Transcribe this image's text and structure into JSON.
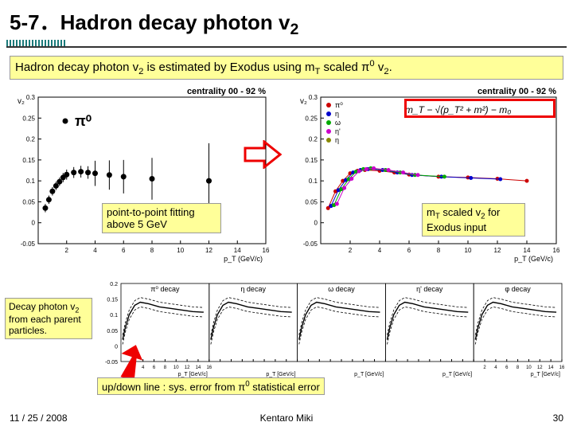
{
  "title": "5-7．Hadron decay photon v",
  "title_sub": "2",
  "statement_pre": "Hadron decay photon v",
  "statement_mid": " is estimated by Exodus using m",
  "statement_post": " scaled π",
  "statement_end": " v",
  "statement_sub1": "2",
  "statement_subT": "T",
  "statement_sup0": "0",
  "statement_sub2": "2",
  "statement_dot": ".",
  "left_chart": {
    "title": "centrality 00 - 92 %",
    "ylabel": "v₂",
    "xlabel": "p_T (GeV/c)",
    "legend": "π⁰",
    "xlim": [
      0,
      16
    ],
    "ylim": [
      -0.05,
      0.3
    ],
    "yticks": [
      -0.05,
      0,
      0.05,
      0.1,
      0.15,
      0.2,
      0.25,
      0.3
    ],
    "xticks": [
      2,
      4,
      6,
      8,
      10,
      12,
      14,
      16
    ],
    "points": [
      {
        "x": 0.5,
        "y": 0.035,
        "ey": 0.01
      },
      {
        "x": 0.75,
        "y": 0.055,
        "ey": 0.01
      },
      {
        "x": 1.0,
        "y": 0.075,
        "ey": 0.01
      },
      {
        "x": 1.25,
        "y": 0.088,
        "ey": 0.01
      },
      {
        "x": 1.5,
        "y": 0.098,
        "ey": 0.01
      },
      {
        "x": 1.75,
        "y": 0.108,
        "ey": 0.011
      },
      {
        "x": 2.0,
        "y": 0.115,
        "ey": 0.012
      },
      {
        "x": 2.5,
        "y": 0.12,
        "ey": 0.013
      },
      {
        "x": 3.0,
        "y": 0.122,
        "ey": 0.014
      },
      {
        "x": 3.5,
        "y": 0.12,
        "ey": 0.015
      },
      {
        "x": 4.0,
        "y": 0.118,
        "ey": 0.03
      },
      {
        "x": 5.0,
        "y": 0.114,
        "ey": 0.035
      },
      {
        "x": 6.0,
        "y": 0.11,
        "ey": 0.04
      },
      {
        "x": 8.0,
        "y": 0.105,
        "ey": 0.05
      },
      {
        "x": 12.0,
        "y": 0.1,
        "ey": 0.09
      }
    ],
    "marker_color": "#000000",
    "marker_size": 3.5
  },
  "right_chart": {
    "title": "centrality 00 - 92 %",
    "ylabel": "v₂",
    "xlabel": "p_T (GeV/c)",
    "xlim": [
      0,
      16
    ],
    "ylim": [
      -0.05,
      0.3
    ],
    "yticks": [
      -0.05,
      0,
      0.05,
      0.1,
      0.15,
      0.2,
      0.25,
      0.3
    ],
    "xticks": [
      2,
      4,
      6,
      8,
      10,
      12,
      14,
      16
    ],
    "legend": [
      {
        "label": "π⁰",
        "marker": "circle",
        "color": "#cc0000"
      },
      {
        "label": "η",
        "marker": "triangle-down",
        "color": "#0000cc"
      },
      {
        "label": "ω",
        "marker": "triangle-up",
        "color": "#00aa00"
      },
      {
        "label": "η'",
        "marker": "triangle-down",
        "color": "#cc00cc"
      },
      {
        "label": "η",
        "marker": "cross",
        "color": "#888800"
      }
    ],
    "formula": "m_T − √(p_T² + m²) − m₀",
    "series": [
      {
        "color": "#cc0000",
        "points": [
          [
            0.5,
            0.035
          ],
          [
            1,
            0.075
          ],
          [
            1.5,
            0.1
          ],
          [
            2,
            0.118
          ],
          [
            2.5,
            0.124
          ],
          [
            3,
            0.126
          ],
          [
            4,
            0.124
          ],
          [
            5,
            0.12
          ],
          [
            6,
            0.115
          ],
          [
            8,
            0.11
          ],
          [
            10,
            0.108
          ],
          [
            12,
            0.105
          ],
          [
            14,
            0.1
          ]
        ]
      },
      {
        "color": "#0000cc",
        "points": [
          [
            0.7,
            0.04
          ],
          [
            1.2,
            0.078
          ],
          [
            1.7,
            0.102
          ],
          [
            2.2,
            0.12
          ],
          [
            2.7,
            0.126
          ],
          [
            3.2,
            0.128
          ],
          [
            4.2,
            0.126
          ],
          [
            5.2,
            0.12
          ],
          [
            6.2,
            0.114
          ],
          [
            8.2,
            0.11
          ],
          [
            10.2,
            0.107
          ],
          [
            12.2,
            0.104
          ]
        ]
      },
      {
        "color": "#00aa00",
        "points": [
          [
            0.9,
            0.042
          ],
          [
            1.4,
            0.08
          ],
          [
            1.9,
            0.104
          ],
          [
            2.4,
            0.122
          ],
          [
            2.9,
            0.128
          ],
          [
            3.4,
            0.13
          ],
          [
            4.4,
            0.126
          ],
          [
            5.4,
            0.12
          ],
          [
            6.4,
            0.114
          ],
          [
            8.4,
            0.11
          ]
        ]
      },
      {
        "color": "#cc00cc",
        "points": [
          [
            1.1,
            0.045
          ],
          [
            1.6,
            0.083
          ],
          [
            2.1,
            0.105
          ],
          [
            2.6,
            0.123
          ],
          [
            3.1,
            0.128
          ],
          [
            3.6,
            0.13
          ],
          [
            4.6,
            0.126
          ],
          [
            5.6,
            0.12
          ],
          [
            6.6,
            0.114
          ]
        ]
      }
    ]
  },
  "caption_left": "point-to-point fitting above 5 GeV",
  "caption_right_pre": "m",
  "caption_right_mid": " scaled v",
  "caption_right_post": " for Exodus input",
  "decay_label_pre": "Decay photon v",
  "decay_label_post": " from each parent particles.",
  "bottom_panels": {
    "titles": [
      "π⁰ decay",
      "η decay",
      "ω decay",
      "η' decay",
      "φ decay"
    ],
    "ylim": [
      -0.05,
      0.2
    ],
    "yticks": [
      -0.05,
      0,
      0.05,
      0.1,
      0.15,
      0.2
    ],
    "xlim": [
      0,
      16
    ],
    "xticks": [
      2,
      4,
      6,
      8,
      10,
      12,
      14,
      16
    ],
    "xlabel": "p_T [GeV/c]",
    "curve": [
      [
        0.3,
        0.02
      ],
      [
        0.8,
        0.06
      ],
      [
        1.5,
        0.1
      ],
      [
        2.5,
        0.13
      ],
      [
        3.5,
        0.14
      ],
      [
        5,
        0.135
      ],
      [
        7,
        0.125
      ],
      [
        9,
        0.12
      ],
      [
        11,
        0.115
      ],
      [
        13,
        0.11
      ],
      [
        15,
        0.108
      ]
    ],
    "band_color": "#000000",
    "band_dash": "3,2"
  },
  "updown_label_pre": "up/down line : sys. error from π",
  "updown_label_post": " statistical error",
  "footer": {
    "date": "11 / 25 / 2008",
    "author": "Kentaro Miki",
    "page": "30"
  },
  "colors": {
    "teal": "#1a7a7a",
    "yellow": "#ffff99",
    "red": "#e00000"
  }
}
